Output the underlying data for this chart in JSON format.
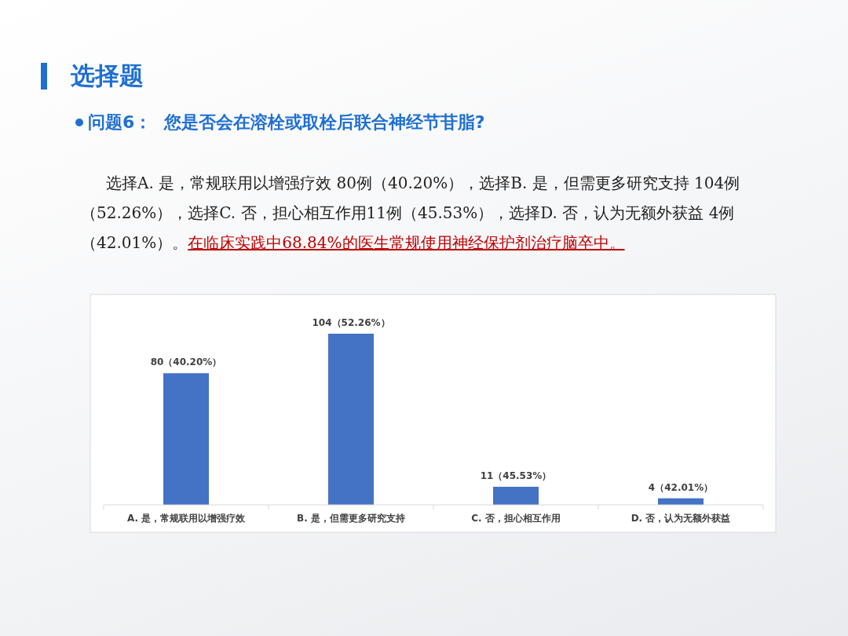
{
  "chart_data": {
    "type": "bar",
    "title": "选择题",
    "subtitle": "问题6：  您是否会在溶栓或取栓后联合神经节苷脂?",
    "annotations": [
      "选择A. 是，常规联用以增强疗效 80例（40.20%），选择B. 是，但需更多研究支持 104例（52.26%），选择C. 否，担心相互作用11例（45.53%），选择D. 否，认为无额外获益 4例（42.01%）。",
      "在临床实践中68.84%的医生常规使用神经保护剂治疗脑卒中。"
    ],
    "categories": [
      "A. 是，常规联用以增强疗效",
      "B. 是，但需更多研究支持",
      "C. 否，担心相互作用",
      "D. 否，认为无额外获益"
    ],
    "values": [
      80,
      104,
      11,
      4
    ],
    "value_labels": [
      "80（40.20%）",
      "104（52.26%）",
      "11（45.53%）",
      "4（42.01%）"
    ],
    "color": "#4472c4"
  }
}
